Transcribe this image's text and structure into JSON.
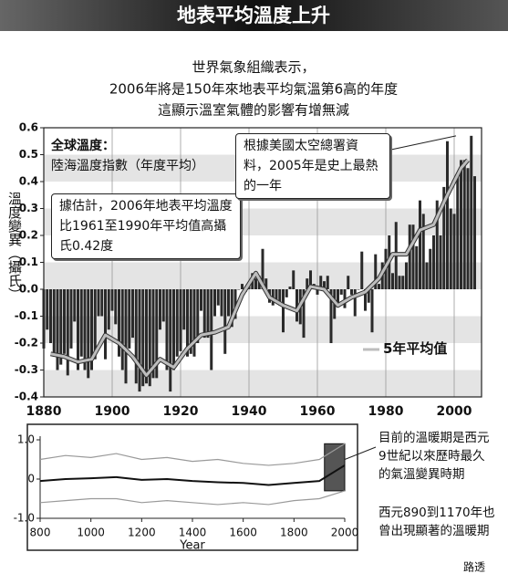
{
  "title": "地表平均溫度上升",
  "subtitle": [
    "世界氣象組織表示，",
    "2006年將是150年來地表平均氣溫第6高的年度",
    "這顯示溫室氣體的影響有增無減"
  ],
  "source": "路透",
  "chart_data": [
    {
      "type": "bar",
      "ylabel": "溫度變異（攝氏）",
      "legend_title": "全球溫度：",
      "xlim": [
        1880,
        2008
      ],
      "xticks": [
        1880,
        1900,
        1920,
        1940,
        1960,
        1980,
        2000
      ],
      "ylim": [
        -0.4,
        0.6
      ],
      "yticks": [
        -0.4,
        -0.3,
        -0.2,
        -0.1,
        {
          "value": 0,
          "label": "0.0"
        },
        0.1,
        0.2,
        0.3,
        0.4,
        0.5,
        0.6
      ],
      "annotations": [
        "據估計，2006年地表平均溫度比1961至1990年平均值高攝氏0.42度",
        "根據美國太空總署資料，2005年是史上最熱的一年"
      ],
      "x": [
        1880,
        1881,
        1882,
        1883,
        1884,
        1885,
        1886,
        1887,
        1888,
        1889,
        1890,
        1891,
        1892,
        1893,
        1894,
        1895,
        1896,
        1897,
        1898,
        1899,
        1900,
        1901,
        1902,
        1903,
        1904,
        1905,
        1906,
        1907,
        1908,
        1909,
        1910,
        1911,
        1912,
        1913,
        1914,
        1915,
        1916,
        1917,
        1918,
        1919,
        1920,
        1921,
        1922,
        1923,
        1924,
        1925,
        1926,
        1927,
        1928,
        1929,
        1930,
        1931,
        1932,
        1933,
        1934,
        1935,
        1936,
        1937,
        1938,
        1939,
        1940,
        1941,
        1942,
        1943,
        1944,
        1945,
        1946,
        1947,
        1948,
        1949,
        1950,
        1951,
        1952,
        1953,
        1954,
        1955,
        1956,
        1957,
        1958,
        1959,
        1960,
        1961,
        1962,
        1963,
        1964,
        1965,
        1966,
        1967,
        1968,
        1969,
        1970,
        1971,
        1972,
        1973,
        1974,
        1975,
        1976,
        1977,
        1978,
        1979,
        1980,
        1981,
        1982,
        1983,
        1984,
        1985,
        1986,
        1987,
        1988,
        1989,
        1990,
        1991,
        1992,
        1993,
        1994,
        1995,
        1996,
        1997,
        1998,
        1999,
        2000,
        2001,
        2002,
        2003,
        2004,
        2005,
        2006
      ],
      "series": [
        {
          "name": "陸海溫度指數（年度平均）",
          "color": "#2a2a2a",
          "values": [
            -0.22,
            -0.15,
            -0.2,
            -0.25,
            -0.3,
            -0.28,
            -0.24,
            -0.32,
            -0.22,
            -0.12,
            -0.3,
            -0.25,
            -0.3,
            -0.33,
            -0.3,
            -0.26,
            -0.1,
            -0.1,
            -0.26,
            -0.15,
            -0.08,
            -0.13,
            -0.25,
            -0.3,
            -0.35,
            -0.22,
            -0.18,
            -0.35,
            -0.38,
            -0.36,
            -0.35,
            -0.36,
            -0.33,
            -0.33,
            -0.15,
            -0.12,
            -0.3,
            -0.38,
            -0.3,
            -0.25,
            -0.23,
            -0.15,
            -0.25,
            -0.24,
            -0.25,
            -0.2,
            -0.08,
            -0.18,
            -0.18,
            -0.3,
            -0.1,
            -0.06,
            -0.1,
            -0.24,
            -0.1,
            -0.14,
            -0.11,
            0.0,
            0.02,
            -0.01,
            0.02,
            0.06,
            0.04,
            0.05,
            0.15,
            0.04,
            -0.05,
            -0.06,
            -0.05,
            -0.06,
            -0.16,
            -0.03,
            0.01,
            0.07,
            -0.12,
            -0.13,
            -0.18,
            0.04,
            0.07,
            0.02,
            -0.02,
            0.05,
            0.03,
            0.05,
            -0.2,
            -0.11,
            -0.06,
            -0.02,
            -0.07,
            0.05,
            -0.02,
            -0.1,
            0.0,
            0.14,
            -0.08,
            -0.05,
            -0.16,
            0.13,
            0.02,
            0.1,
            0.15,
            0.2,
            0.06,
            0.25,
            0.05,
            0.05,
            0.1,
            0.24,
            0.24,
            0.16,
            0.33,
            0.28,
            0.1,
            0.15,
            0.2,
            0.33,
            0.2,
            0.38,
            0.55,
            0.3,
            0.28,
            0.43,
            0.48,
            0.48,
            0.45,
            0.57,
            0.42
          ]
        },
        {
          "name": "5年平均值",
          "color": "#bdbdbd",
          "x": [
            1882,
            1886,
            1890,
            1894,
            1898,
            1902,
            1906,
            1910,
            1914,
            1918,
            1922,
            1926,
            1930,
            1934,
            1938,
            1942,
            1946,
            1950,
            1954,
            1958,
            1962,
            1966,
            1970,
            1974,
            1978,
            1982,
            1986,
            1990,
            1994,
            1998,
            2002,
            2004
          ],
          "values": [
            -0.24,
            -0.25,
            -0.27,
            -0.26,
            -0.17,
            -0.2,
            -0.25,
            -0.32,
            -0.26,
            -0.29,
            -0.22,
            -0.17,
            -0.16,
            -0.14,
            -0.02,
            0.06,
            -0.03,
            -0.06,
            -0.08,
            0.01,
            0.0,
            -0.06,
            -0.03,
            -0.01,
            0.04,
            0.13,
            0.13,
            0.22,
            0.24,
            0.35,
            0.45,
            0.48
          ]
        }
      ]
    },
    {
      "type": "line",
      "xlabel": "Year",
      "xlim": [
        800,
        2000
      ],
      "xticks": [
        800,
        1000,
        1200,
        1400,
        1600,
        1800,
        2000
      ],
      "ylim": [
        -1,
        1
      ],
      "yticks": [
        {
          "value": -1,
          "label": "-1.0"
        },
        0,
        {
          "value": 1,
          "label": "1.0"
        }
      ],
      "annotations": [
        "目前的溫暖期是西元9世紀以來歷時最久的氣溫變異時期",
        "西元890到1170年也曾出現顯著的溫暖期"
      ],
      "x": [
        800,
        900,
        1000,
        1100,
        1200,
        1300,
        1400,
        1500,
        1600,
        1700,
        1800,
        1900,
        2000
      ],
      "series": [
        {
          "color": "#9a9a9a",
          "values": [
            0.5,
            0.6,
            0.55,
            0.65,
            0.5,
            0.55,
            0.45,
            0.5,
            0.4,
            0.35,
            0.4,
            0.5,
            0.9
          ]
        },
        {
          "color": "#111111",
          "values": [
            -0.05,
            0.0,
            0.02,
            0.05,
            -0.02,
            0.0,
            -0.05,
            -0.08,
            -0.1,
            -0.15,
            -0.1,
            -0.05,
            0.35
          ]
        },
        {
          "color": "#9a9a9a",
          "values": [
            -0.6,
            -0.55,
            -0.5,
            -0.5,
            -0.6,
            -0.55,
            -0.6,
            -0.65,
            -0.6,
            -0.65,
            -0.55,
            -0.5,
            -0.3
          ]
        }
      ]
    }
  ]
}
